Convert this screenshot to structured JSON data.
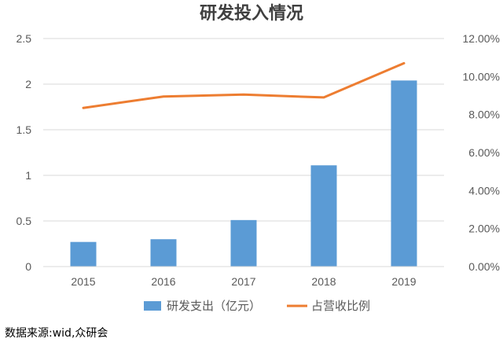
{
  "chart_data": {
    "type": "bar",
    "title": "研发投入情况",
    "categories": [
      "2015",
      "2016",
      "2017",
      "2018",
      "2019"
    ],
    "series": [
      {
        "name": "研发支出（亿元）",
        "type": "bar",
        "axis": "left",
        "color": "#5B9BD5",
        "values": [
          0.27,
          0.3,
          0.51,
          1.11,
          2.04
        ]
      },
      {
        "name": "占营收比例",
        "type": "line",
        "axis": "right",
        "color": "#ED7D31",
        "values": [
          8.35,
          8.95,
          9.05,
          8.9,
          10.7
        ]
      }
    ],
    "y_left": {
      "range": [
        0,
        2.5
      ],
      "ticks": [
        "0",
        "0.5",
        "1",
        "1.5",
        "2",
        "2.5"
      ]
    },
    "y_right": {
      "range": [
        0,
        12
      ],
      "ticks": [
        "0.00%",
        "2.00%",
        "4.00%",
        "6.00%",
        "8.00%",
        "10.00%",
        "12.00%"
      ]
    },
    "grid": true,
    "legend_position": "bottom"
  },
  "source_note": "数据来源:wid,众研会"
}
